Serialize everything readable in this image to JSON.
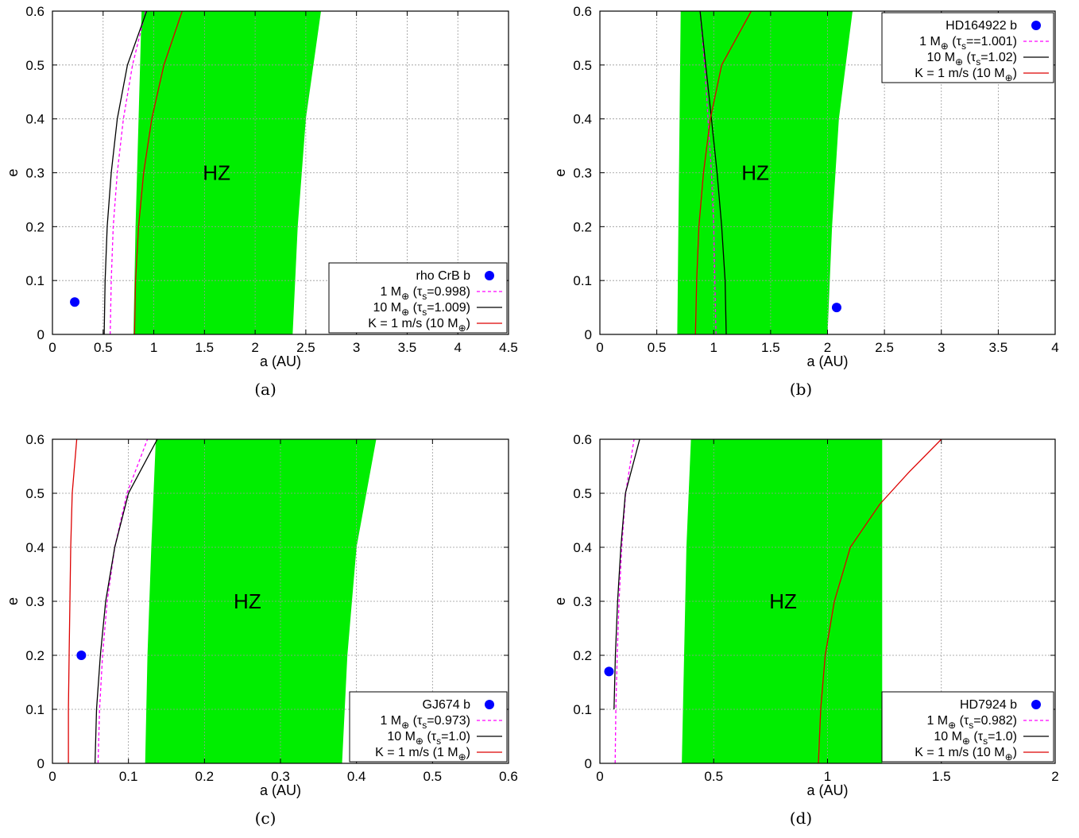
{
  "colors": {
    "hz_fill": "#00ee00",
    "point": "#0000ff",
    "one_earth_mass": "#ff00ff",
    "ten_earth_mass": "#000000",
    "rv_limit": "#dd0000"
  },
  "chart_data": [
    {
      "type": "line",
      "caption": "(a)",
      "xlabel": "a (AU)",
      "ylabel": "e",
      "xlim": [
        0,
        4.5
      ],
      "ylim": [
        0,
        0.6
      ],
      "xticks": [
        "0",
        "0.5",
        "1",
        "1.5",
        "2",
        "2.5",
        "3",
        "3.5",
        "4",
        "4.5"
      ],
      "yticks": [
        "0",
        "0.1",
        "0.2",
        "0.3",
        "0.4",
        "0.5",
        "0.6"
      ],
      "grid": true,
      "legend_position": "bottom-right",
      "hz_label": "HZ",
      "hz": {
        "inner": [
          [
            0.8,
            0
          ],
          [
            0.82,
            0.2
          ],
          [
            0.85,
            0.4
          ],
          [
            0.88,
            0.6
          ]
        ],
        "outer": [
          [
            2.37,
            0
          ],
          [
            2.42,
            0.2
          ],
          [
            2.5,
            0.4
          ],
          [
            2.65,
            0.6
          ]
        ]
      },
      "point": {
        "label": "rho CrB b",
        "x": 0.22,
        "y": 0.06
      },
      "series": [
        {
          "label": "1 M⊕ (τs=0.998)",
          "style": "dashed",
          "color": "#ff00ff",
          "points": [
            [
              0.57,
              0
            ],
            [
              0.58,
              0.1
            ],
            [
              0.6,
              0.2
            ],
            [
              0.64,
              0.3
            ],
            [
              0.7,
              0.4
            ],
            [
              0.79,
              0.5
            ],
            [
              0.92,
              0.6
            ]
          ]
        },
        {
          "label": "10 M⊕ (τs=1.009)",
          "style": "solid",
          "color": "#000000",
          "points": [
            [
              0.51,
              0
            ],
            [
              0.52,
              0.1
            ],
            [
              0.54,
              0.2
            ],
            [
              0.58,
              0.3
            ],
            [
              0.64,
              0.4
            ],
            [
              0.74,
              0.5
            ],
            [
              0.93,
              0.6
            ]
          ]
        },
        {
          "label": "K = 1 m/s (10 M⊕)",
          "style": "solid",
          "color": "#dd0000",
          "points": [
            [
              0.81,
              0
            ],
            [
              0.82,
              0.1
            ],
            [
              0.85,
              0.2
            ],
            [
              0.9,
              0.3
            ],
            [
              0.98,
              0.4
            ],
            [
              1.1,
              0.5
            ],
            [
              1.28,
              0.6
            ]
          ]
        }
      ]
    },
    {
      "type": "line",
      "caption": "(b)",
      "xlabel": "a (AU)",
      "ylabel": "e",
      "xlim": [
        0,
        4
      ],
      "ylim": [
        0,
        0.6
      ],
      "xticks": [
        "0",
        "0.5",
        "1",
        "1.5",
        "2",
        "2.5",
        "3",
        "3.5",
        "4"
      ],
      "yticks": [
        "0",
        "0.1",
        "0.2",
        "0.3",
        "0.4",
        "0.5",
        "0.6"
      ],
      "grid": true,
      "legend_position": "top-right",
      "hz_label": "HZ",
      "hz": {
        "inner": [
          [
            0.68,
            0
          ],
          [
            0.69,
            0.2
          ],
          [
            0.7,
            0.4
          ],
          [
            0.71,
            0.6
          ]
        ],
        "outer": [
          [
            2.0,
            0
          ],
          [
            2.04,
            0.2
          ],
          [
            2.1,
            0.4
          ],
          [
            2.22,
            0.6
          ]
        ]
      },
      "point": {
        "label": "HD164922 b",
        "x": 2.08,
        "y": 0.05
      },
      "series": [
        {
          "label": "1 M⊕ (τs==1.001)",
          "style": "dashed",
          "color": "#ff00ff",
          "points": [
            [
              1.02,
              0
            ],
            [
              1.01,
              0.1
            ],
            [
              1.0,
              0.2
            ],
            [
              0.98,
              0.3
            ],
            [
              0.95,
              0.4
            ],
            [
              0.92,
              0.5
            ],
            [
              0.88,
              0.6
            ]
          ]
        },
        {
          "label": "10 M⊕ (τs=1.02)",
          "style": "solid",
          "color": "#000000",
          "points": [
            [
              1.11,
              0
            ],
            [
              1.1,
              0.1
            ],
            [
              1.07,
              0.2
            ],
            [
              1.03,
              0.3
            ],
            [
              0.98,
              0.4
            ],
            [
              0.93,
              0.5
            ],
            [
              0.88,
              0.6
            ]
          ]
        },
        {
          "label": "K = 1 m/s (10 M⊕)",
          "style": "solid",
          "color": "#dd0000",
          "points": [
            [
              0.84,
              0
            ],
            [
              0.85,
              0.1
            ],
            [
              0.87,
              0.2
            ],
            [
              0.91,
              0.3
            ],
            [
              0.97,
              0.4
            ],
            [
              1.07,
              0.5
            ],
            [
              1.33,
              0.6
            ]
          ]
        }
      ]
    },
    {
      "type": "line",
      "caption": "(c)",
      "xlabel": "a (AU)",
      "ylabel": "e",
      "xlim": [
        0,
        0.6
      ],
      "ylim": [
        0,
        0.6
      ],
      "xticks": [
        "0",
        "0.1",
        "0.2",
        "0.3",
        "0.4",
        "0.5",
        "0.6"
      ],
      "yticks": [
        "0",
        "0.1",
        "0.2",
        "0.3",
        "0.4",
        "0.5",
        "0.6"
      ],
      "grid": true,
      "legend_position": "bottom-right",
      "hz_label": "HZ",
      "hz": {
        "inner": [
          [
            0.122,
            0
          ],
          [
            0.125,
            0.2
          ],
          [
            0.13,
            0.4
          ],
          [
            0.136,
            0.6
          ]
        ],
        "outer": [
          [
            0.381,
            0
          ],
          [
            0.388,
            0.2
          ],
          [
            0.4,
            0.4
          ],
          [
            0.426,
            0.6
          ]
        ]
      },
      "point": {
        "label": "GJ674 b",
        "x": 0.038,
        "y": 0.2
      },
      "series": [
        {
          "label": "1 M⊕ (τs=0.973)",
          "style": "dashed",
          "color": "#ff00ff",
          "points": [
            [
              0.06,
              0
            ],
            [
              0.062,
              0.1
            ],
            [
              0.066,
              0.2
            ],
            [
              0.072,
              0.3
            ],
            [
              0.082,
              0.4
            ],
            [
              0.098,
              0.5
            ],
            [
              0.125,
              0.6
            ]
          ]
        },
        {
          "label": "10 M⊕ (τs=1.0)",
          "style": "solid",
          "color": "#000000",
          "points": [
            [
              0.056,
              0
            ],
            [
              0.058,
              0.1
            ],
            [
              0.063,
              0.2
            ],
            [
              0.07,
              0.3
            ],
            [
              0.082,
              0.4
            ],
            [
              0.1,
              0.5
            ],
            [
              0.138,
              0.6
            ]
          ]
        },
        {
          "label": "K = 1 m/s (1 M⊕)",
          "style": "solid",
          "color": "#dd0000",
          "points": [
            [
              0.021,
              0
            ],
            [
              0.021,
              0.1
            ],
            [
              0.022,
              0.2
            ],
            [
              0.023,
              0.3
            ],
            [
              0.024,
              0.4
            ],
            [
              0.026,
              0.5
            ],
            [
              0.032,
              0.6
            ]
          ]
        }
      ]
    },
    {
      "type": "line",
      "caption": "(d)",
      "xlabel": "a (AU)",
      "ylabel": "e",
      "xlim": [
        0,
        2
      ],
      "ylim": [
        0,
        0.6
      ],
      "xticks": [
        "0",
        "0.5",
        "1",
        "1.5",
        "2"
      ],
      "yticks": [
        "0",
        "0.1",
        "0.2",
        "0.3",
        "0.4",
        "0.5",
        "0.6"
      ],
      "grid": true,
      "legend_position": "bottom-right",
      "hz_label": "HZ",
      "hz": {
        "inner": [
          [
            0.36,
            0
          ],
          [
            0.37,
            0.2
          ],
          [
            0.38,
            0.4
          ],
          [
            0.4,
            0.6
          ]
        ],
        "outer": [
          [
            1.24,
            0
          ],
          [
            1.24,
            0.2
          ],
          [
            1.24,
            0.4
          ],
          [
            1.24,
            0.6
          ]
        ]
      },
      "point": {
        "label": "HD7924 b",
        "x": 0.04,
        "y": 0.17
      },
      "series": [
        {
          "label": "1 M⊕ (τs=0.982)",
          "style": "dashed",
          "color": "#ff00ff",
          "points": [
            [
              0.067,
              0
            ],
            [
              0.07,
              0.1
            ],
            [
              0.076,
              0.2
            ],
            [
              0.084,
              0.3
            ],
            [
              0.096,
              0.4
            ],
            [
              0.113,
              0.5
            ],
            [
              0.15,
              0.6
            ]
          ]
        },
        {
          "label": "10 M⊕ (τs=1.0)",
          "style": "solid",
          "color": "#000000",
          "points": [
            [
              0.062,
              0.1
            ],
            [
              0.068,
              0.2
            ],
            [
              0.078,
              0.3
            ],
            [
              0.092,
              0.4
            ],
            [
              0.112,
              0.5
            ],
            [
              0.175,
              0.6
            ]
          ]
        },
        {
          "label": "K = 1 m/s (10 M⊕)",
          "style": "solid",
          "color": "#dd0000",
          "points": [
            [
              0.96,
              0
            ],
            [
              0.97,
              0.1
            ],
            [
              0.99,
              0.2
            ],
            [
              1.03,
              0.3
            ],
            [
              1.1,
              0.4
            ],
            [
              1.23,
              0.48
            ],
            [
              1.36,
              0.54
            ],
            [
              1.5,
              0.6
            ]
          ]
        }
      ]
    }
  ]
}
